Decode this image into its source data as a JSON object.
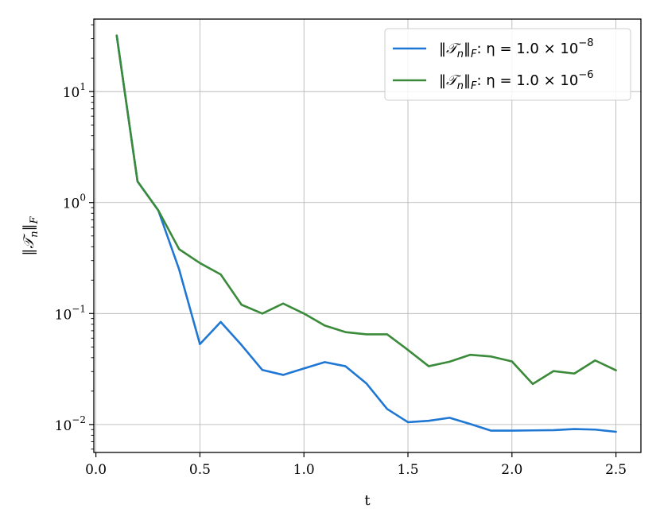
{
  "chart_data": {
    "type": "line",
    "title": "",
    "xlabel": "t",
    "ylabel": "‖𝒯ₙ‖_F",
    "xlim": [
      -0.01,
      2.62
    ],
    "ylim": [
      0.0056,
      45
    ],
    "yscale": "log",
    "grid": true,
    "legend_position": "top-right",
    "x_ticks": [
      0.0,
      0.5,
      1.0,
      1.5,
      2.0,
      2.5
    ],
    "x_tick_labels": [
      "0.0",
      "0.5",
      "1.0",
      "1.5",
      "2.0",
      "2.5"
    ],
    "y_ticks": [
      0.01,
      0.1,
      1,
      10
    ],
    "y_tick_labels": [
      {
        "base": "10",
        "exp": "−2"
      },
      {
        "base": "10",
        "exp": "−1"
      },
      {
        "base": "10",
        "exp": "0"
      },
      {
        "base": "10",
        "exp": "1"
      }
    ],
    "x": [
      0.1,
      0.2,
      0.3,
      0.4,
      0.5,
      0.6,
      0.7,
      0.8,
      0.9,
      1.0,
      1.1,
      1.2,
      1.3,
      1.4,
      1.5,
      1.6,
      1.7,
      1.8,
      1.9,
      2.0,
      2.1,
      2.2,
      2.3,
      2.4,
      2.5
    ],
    "series": [
      {
        "name": "‖𝒯ₙ‖_F: η = 1.0 × 10⁻⁸",
        "legend": {
          "main": "‖𝒯",
          "sub": "n",
          "main2": "‖",
          "sub2": "F",
          "mid": ": η = 1.0 × 10",
          "exp": "−8"
        },
        "color": "#1f77d4",
        "values": [
          32,
          1.55,
          0.85,
          0.25,
          0.053,
          0.084,
          0.052,
          0.031,
          0.028,
          0.032,
          0.0365,
          0.0335,
          0.0235,
          0.0138,
          0.0105,
          0.0108,
          0.0115,
          0.0101,
          0.0088,
          0.0088,
          0.00885,
          0.0089,
          0.0091,
          0.009,
          0.0086
        ]
      },
      {
        "name": "‖𝒯ₙ‖_F: η = 1.0 × 10⁻⁶",
        "legend": {
          "main": "‖𝒯",
          "sub": "n",
          "main2": "‖",
          "sub2": "F",
          "mid": ": η = 1.0 × 10",
          "exp": "−6"
        },
        "color": "#3a8a3a",
        "values": [
          32,
          1.55,
          0.85,
          0.38,
          0.285,
          0.225,
          0.12,
          0.1,
          0.123,
          0.1,
          0.078,
          0.068,
          0.065,
          0.065,
          0.047,
          0.0335,
          0.0368,
          0.0425,
          0.041,
          0.037,
          0.0232,
          0.0303,
          0.0288,
          0.0378,
          0.0308
        ]
      }
    ]
  }
}
